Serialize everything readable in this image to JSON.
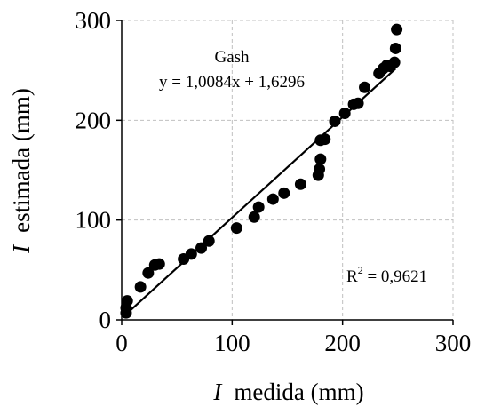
{
  "chart_data": {
    "type": "scatter",
    "title": "",
    "xlabel": {
      "symbol": "I",
      "text": "medida (mm)"
    },
    "ylabel": {
      "symbol": "I",
      "text": "estimada (mm)"
    },
    "xlim": [
      0,
      300
    ],
    "ylim": [
      0,
      300
    ],
    "xticks": [
      0,
      100,
      200,
      300
    ],
    "yticks": [
      0,
      100,
      200,
      300
    ],
    "grid": true,
    "annotations": {
      "model": "Gash",
      "equation": "y = 1,0084x + 1,6296",
      "r2_label": "R",
      "r2_sup": "2",
      "r2_value": " = 0,9621"
    },
    "trendline": {
      "slope": 1.0084,
      "intercept": 1.6296,
      "x_range": [
        2,
        248
      ]
    },
    "points": [
      [
        4,
        7
      ],
      [
        4,
        12
      ],
      [
        5,
        19
      ],
      [
        17,
        33
      ],
      [
        24,
        47
      ],
      [
        30,
        55
      ],
      [
        34,
        56
      ],
      [
        56,
        61
      ],
      [
        63,
        66
      ],
      [
        72,
        72
      ],
      [
        79,
        79
      ],
      [
        104,
        92
      ],
      [
        120,
        103
      ],
      [
        124,
        113
      ],
      [
        137,
        121
      ],
      [
        147,
        127
      ],
      [
        162,
        136
      ],
      [
        178,
        145
      ],
      [
        179,
        151
      ],
      [
        180,
        161
      ],
      [
        180,
        180
      ],
      [
        184,
        181
      ],
      [
        193,
        199
      ],
      [
        202,
        207
      ],
      [
        210,
        216
      ],
      [
        214,
        217
      ],
      [
        220,
        233
      ],
      [
        233,
        247
      ],
      [
        237,
        252
      ],
      [
        240,
        255
      ],
      [
        243,
        254
      ],
      [
        247,
        258
      ],
      [
        248,
        272
      ],
      [
        249,
        291
      ]
    ]
  }
}
